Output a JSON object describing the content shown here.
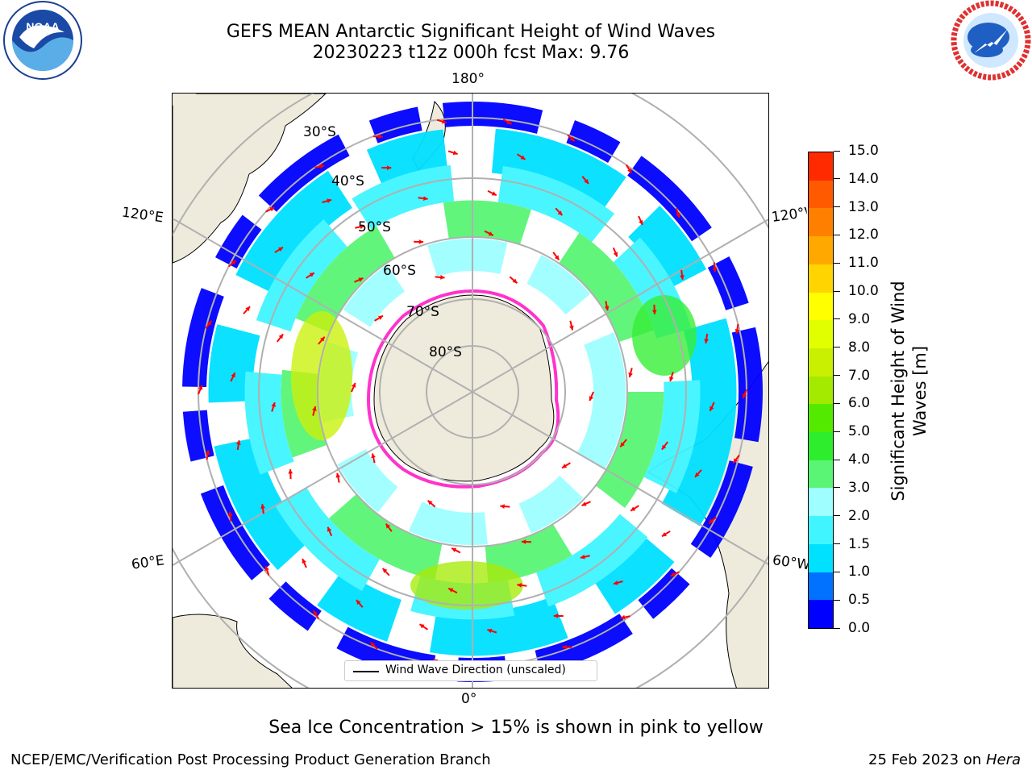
{
  "header": {
    "title_line1": "GEFS MEAN Antarctic Significant Height of Wind Waves",
    "title_line2": "20230223 t12z 000h fcst   Max: 9.76"
  },
  "logos": {
    "noaa": {
      "text": "NOAA",
      "ring_text": "NATIONAL OCEANIC AND ATMOSPHERIC ADMINISTRATION · U.S. DEPARTMENT OF COMMERCE"
    },
    "nws": {
      "ring_text": "NATIONAL WEATHER SERVICE"
    }
  },
  "map": {
    "projection": "south-polar-stereographic",
    "longitude_labels": {
      "top": "180°",
      "bottom": "0°",
      "upper_left": "120°E",
      "lower_left": "60°E",
      "upper_right": "120°W",
      "lower_right": "60°W"
    },
    "latitude_labels": [
      "30°S",
      "40°S",
      "50°S",
      "60°S",
      "70°S",
      "80°S"
    ],
    "legend": {
      "label": "Wind Wave Direction (unscaled)"
    },
    "colors": {
      "land": "#efebdc",
      "ocean": "#ffffff",
      "grid": "#b0b0b0",
      "arrow": "#ff0000",
      "ice": "#ff33cc"
    }
  },
  "colorbar": {
    "label": "Significant Height of Wind Waves [m]",
    "label_lines": [
      "Significant Height of Wind",
      "Waves [m]"
    ],
    "ticks": [
      "0.0",
      "0.5",
      "1.0",
      "1.5",
      "2.0",
      "3.0",
      "4.0",
      "5.0",
      "6.0",
      "7.0",
      "8.0",
      "9.0",
      "10.0",
      "11.0",
      "12.0",
      "13.0",
      "14.0",
      "15.0"
    ],
    "colors": [
      "#0000ff",
      "#0072ff",
      "#00e0ff",
      "#40f5ff",
      "#9ffeff",
      "#5af575",
      "#2ded2d",
      "#53ea00",
      "#a3ea00",
      "#c8f000",
      "#e2ff00",
      "#ffff00",
      "#ffd400",
      "#ffa800",
      "#ff8000",
      "#ff5a00",
      "#ff2a00"
    ]
  },
  "footer": {
    "ice_note": "Sea Ice Concentration > 15% is shown in pink to yellow",
    "credit_left": "NCEP/EMC/Verification Post Processing Product Generation Branch",
    "credit_date": "25 Feb 2023 on",
    "credit_host": "Hera"
  }
}
